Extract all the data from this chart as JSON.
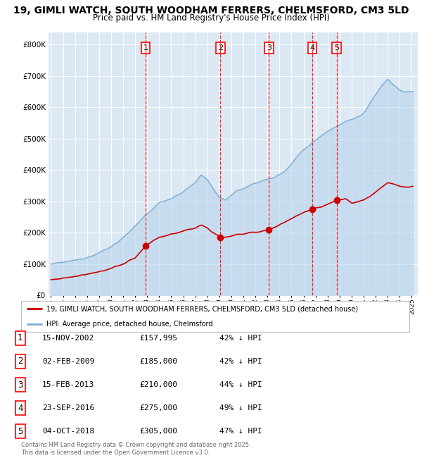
{
  "title_line1": "19, GIMLI WATCH, SOUTH WOODHAM FERRERS, CHELMSFORD, CM3 5LD",
  "title_line2": "Price paid vs. HM Land Registry's House Price Index (HPI)",
  "bg_color": "#dce9f5",
  "hpi_color": "#7aadd4",
  "hpi_fill_color": "#b8d4ea",
  "price_color": "#cc0000",
  "grid_color": "#ffffff",
  "yticks": [
    0,
    100000,
    200000,
    300000,
    400000,
    500000,
    600000,
    700000,
    800000
  ],
  "ytick_labels": [
    "£0",
    "£100K",
    "£200K",
    "£300K",
    "£400K",
    "£500K",
    "£600K",
    "£700K",
    "£800K"
  ],
  "xlim_start": 1994.8,
  "xlim_end": 2025.5,
  "ylim_min": 0,
  "ylim_max": 840000,
  "sale_events": [
    {
      "num": 1,
      "date_str": "15-NOV-2002",
      "date_x": 2002.87,
      "price": 157995
    },
    {
      "num": 2,
      "date_str": "02-FEB-2009",
      "date_x": 2009.09,
      "price": 185000
    },
    {
      "num": 3,
      "date_str": "15-FEB-2013",
      "date_x": 2013.12,
      "price": 210000
    },
    {
      "num": 4,
      "date_str": "23-SEP-2016",
      "date_x": 2016.73,
      "price": 275000
    },
    {
      "num": 5,
      "date_str": "04-OCT-2018",
      "date_x": 2018.75,
      "price": 305000
    }
  ],
  "legend_price_label": "19, GIMLI WATCH, SOUTH WOODHAM FERRERS, CHELMSFORD, CM3 5LD (detached house)",
  "legend_hpi_label": "HPI: Average price, detached house, Chelmsford",
  "footer_text": "Contains HM Land Registry data © Crown copyright and database right 2025.\nThis data is licensed under the Open Government Licence v3.0.",
  "table_rows": [
    [
      "1",
      "15-NOV-2002",
      "£157,995",
      "42% ↓ HPI"
    ],
    [
      "2",
      "02-FEB-2009",
      "£185,000",
      "42% ↓ HPI"
    ],
    [
      "3",
      "15-FEB-2013",
      "£210,000",
      "44% ↓ HPI"
    ],
    [
      "4",
      "23-SEP-2016",
      "£275,000",
      "49% ↓ HPI"
    ],
    [
      "5",
      "04-OCT-2018",
      "£305,000",
      "47% ↓ HPI"
    ]
  ]
}
